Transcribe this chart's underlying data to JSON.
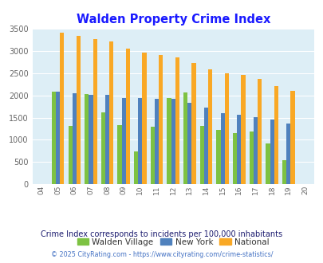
{
  "title": "Walden Property Crime Index",
  "years": [
    2004,
    2005,
    2006,
    2007,
    2008,
    2009,
    2010,
    2011,
    2012,
    2013,
    2014,
    2015,
    2016,
    2017,
    2018,
    2019,
    2020
  ],
  "walden": [
    null,
    2080,
    1305,
    2025,
    1620,
    1330,
    730,
    1290,
    1950,
    2070,
    1310,
    1230,
    1150,
    1190,
    910,
    545,
    null
  ],
  "newyork": [
    null,
    2090,
    2050,
    2010,
    2015,
    1950,
    1950,
    1930,
    1920,
    1830,
    1720,
    1600,
    1560,
    1510,
    1460,
    1370,
    null
  ],
  "national": [
    null,
    3420,
    3340,
    3270,
    3220,
    3050,
    2960,
    2910,
    2860,
    2730,
    2590,
    2500,
    2460,
    2380,
    2210,
    2110,
    null
  ],
  "walden_color": "#7dc242",
  "newyork_color": "#4f81bd",
  "national_color": "#f9a825",
  "bg_color": "#ddeef6",
  "title_color": "#1a1aff",
  "subtitle": "Crime Index corresponds to incidents per 100,000 inhabitants",
  "subtitle_color": "#1a1a6e",
  "footnote": "© 2025 CityRating.com - https://www.cityrating.com/crime-statistics/",
  "footnote_color": "#4472c4",
  "ylim": [
    0,
    3500
  ],
  "yticks": [
    0,
    500,
    1000,
    1500,
    2000,
    2500,
    3000,
    3500
  ]
}
